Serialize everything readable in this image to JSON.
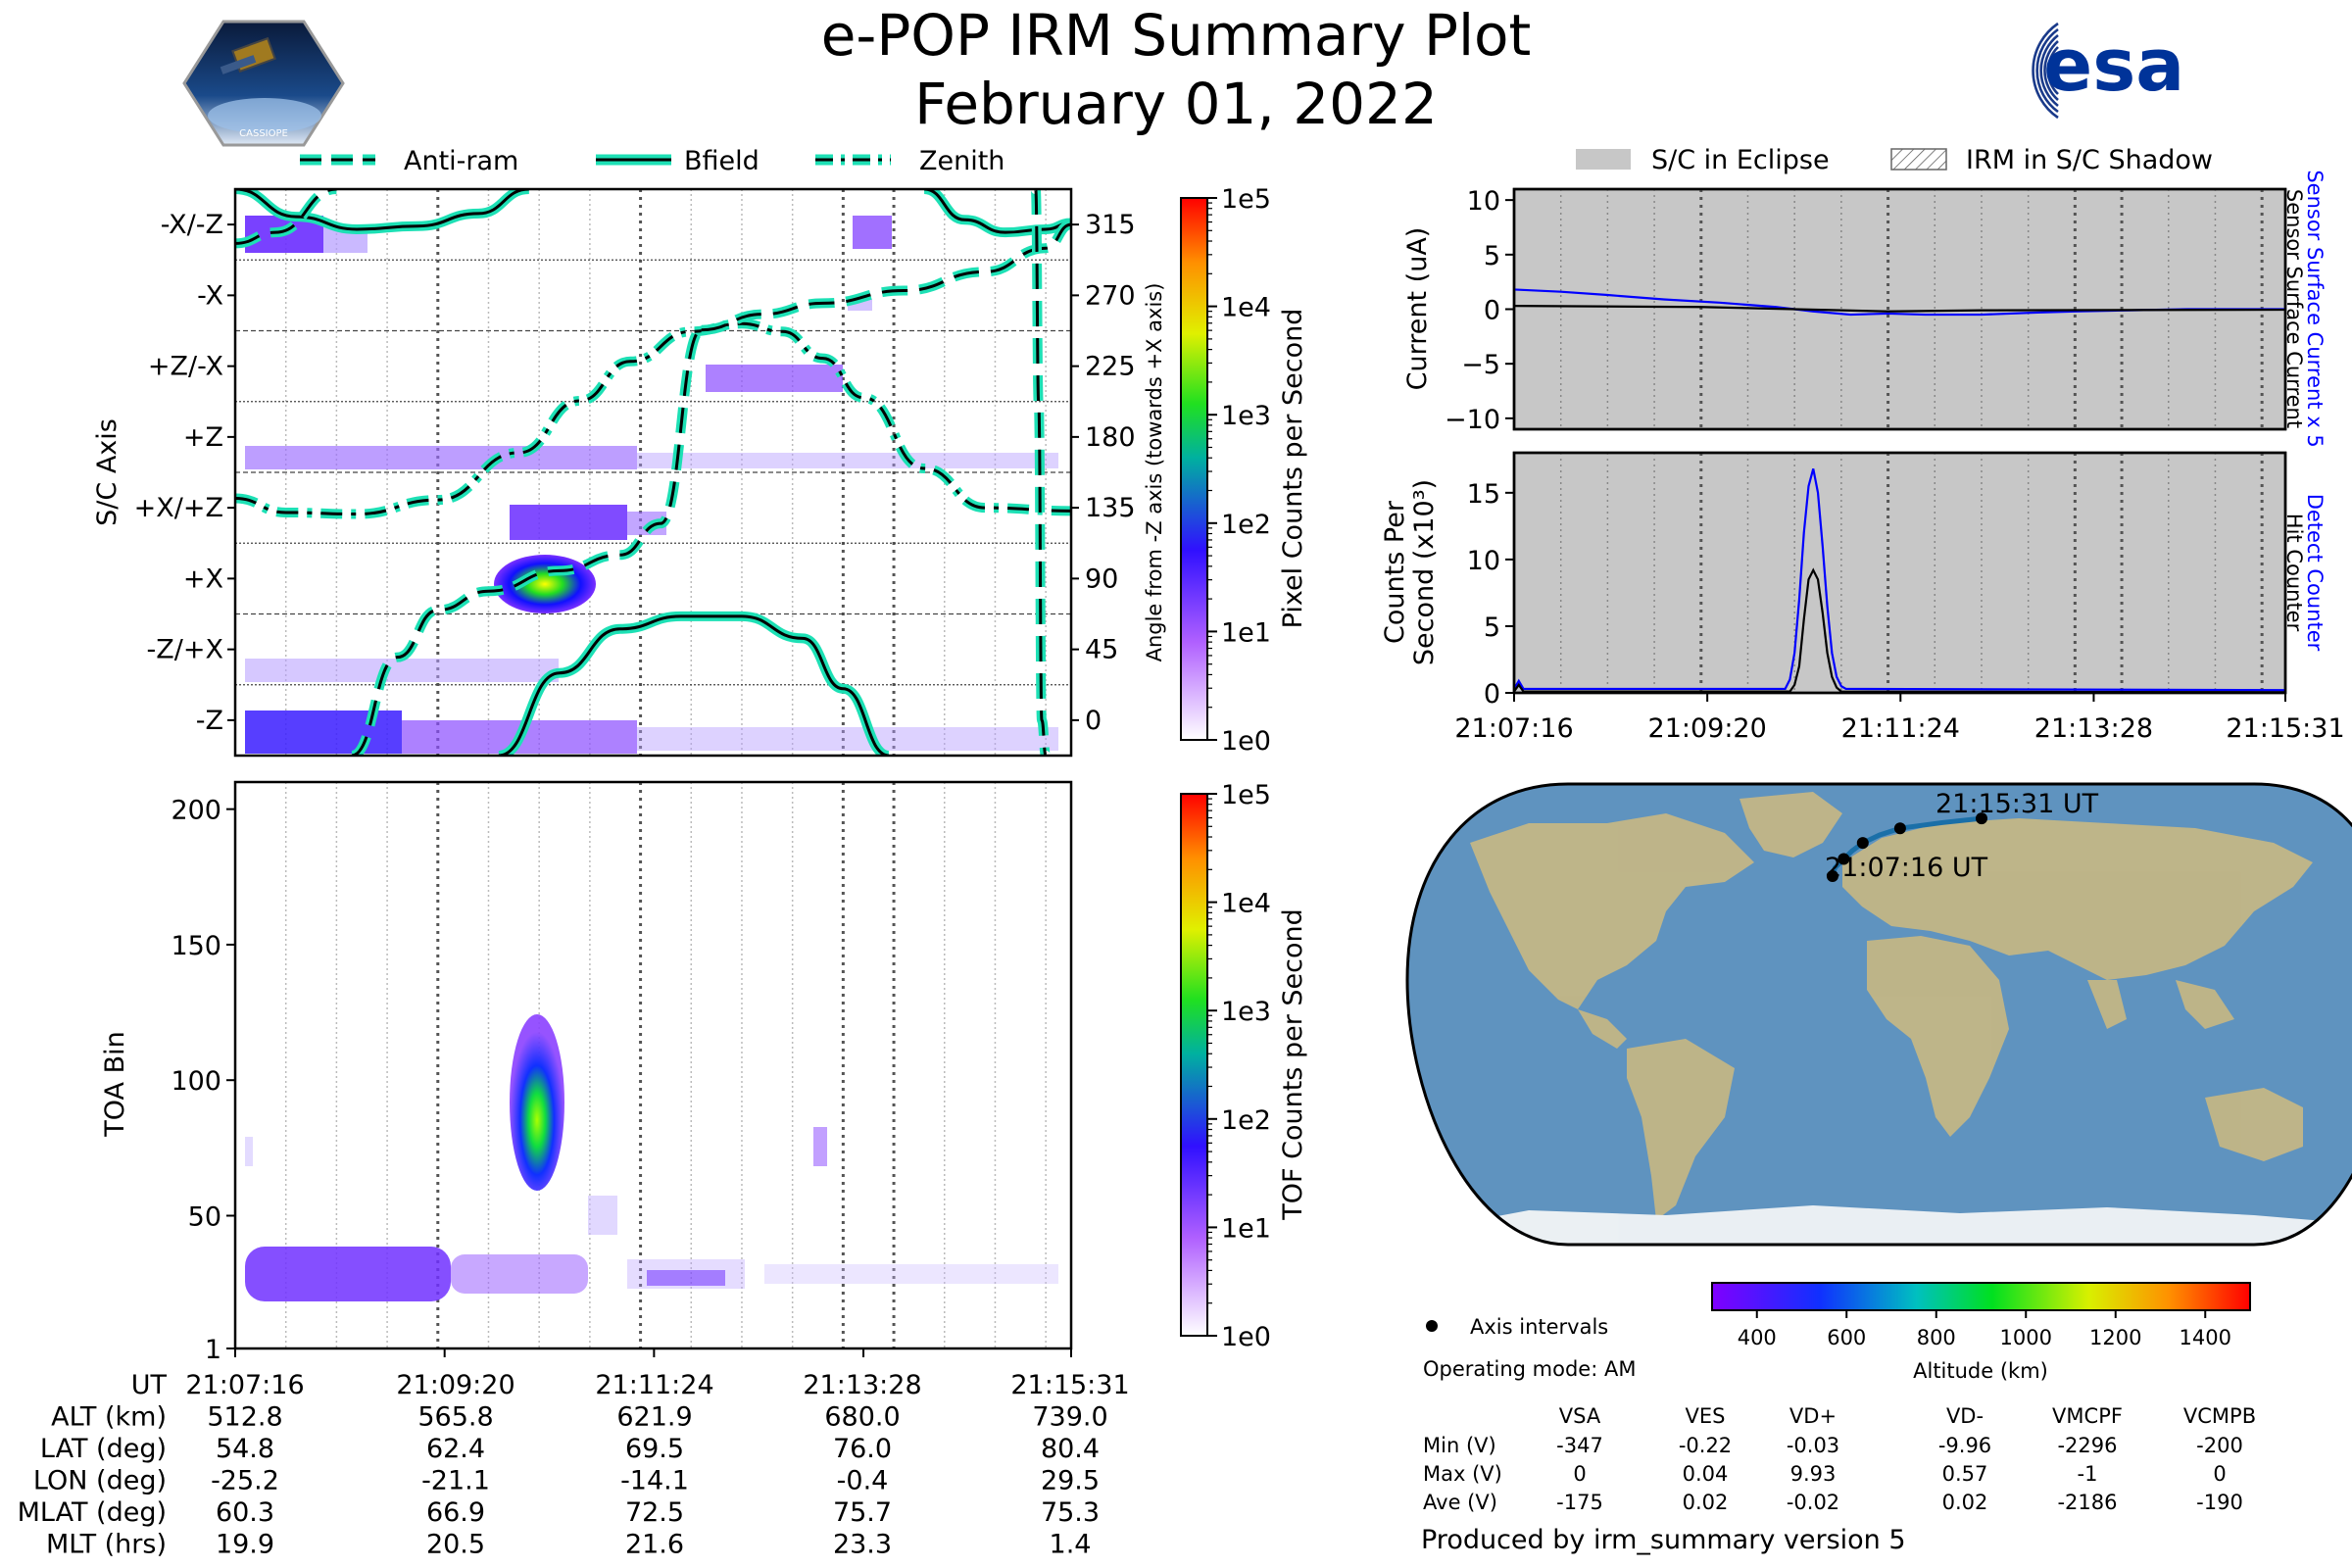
{
  "header": {
    "title": "e-POP IRM Summary Plot",
    "date": "February 01, 2022",
    "left_logo_text": "CASSIOPE",
    "right_logo_text": "esa"
  },
  "colors": {
    "teal": "#1de0b5",
    "blue": "#0000ff",
    "eclipse_gray": "#c7c7c7",
    "map_ocean": "#5f93bf",
    "map_land": "#c3b686",
    "orbit": "#1a6fa8"
  },
  "chart_data": [
    {
      "id": "axis_panel",
      "type": "heatmap",
      "ylabel": "S/C Axis",
      "right_ylabel": "Angle from -Z axis (towards +X axis)",
      "legend": [
        "Anti-ram",
        "Bfield",
        "Zenith"
      ],
      "categories": [
        "-X/-Z",
        "-X",
        "+Z/-X",
        "+Z",
        "+X/+Z",
        "+X",
        "-Z/+X",
        "-Z"
      ],
      "right_ticks": [
        315,
        270,
        225,
        180,
        135,
        90,
        45,
        0
      ],
      "ylim": [
        -22.5,
        337.5
      ],
      "x_minutes": [
        0,
        8.25
      ],
      "curves": [
        {
          "name": "Bfield",
          "style": "solid",
          "x": [
            0,
            0.6,
            1.2,
            1.8,
            2.4,
            2.9
          ],
          "y": [
            337.5,
            320,
            312,
            314,
            322,
            337.5
          ]
        },
        {
          "name": "Bfield",
          "style": "solid",
          "x": [
            6.8,
            7.2,
            7.6,
            8.0,
            8.25
          ],
          "y": [
            337.5,
            318,
            310,
            312,
            316
          ]
        },
        {
          "name": "Bfield",
          "style": "solid",
          "x": [
            2.6,
            3.2,
            3.8,
            4.4,
            5.0,
            5.6,
            6.0,
            6.45
          ],
          "y": [
            -22.5,
            30,
            58,
            66,
            66,
            52,
            20,
            -22.5
          ]
        },
        {
          "name": "Zenith",
          "style": "dashdot",
          "x": [
            0,
            0.5,
            1.2,
            2.0,
            2.8,
            3.4,
            3.9,
            4.5,
            5.0,
            5.4,
            5.8,
            6.2,
            6.8,
            7.4,
            8.25
          ],
          "y": [
            141,
            132,
            131,
            140,
            170,
            203,
            228,
            247,
            252,
            247,
            230,
            205,
            160,
            135,
            133
          ]
        },
        {
          "name": "Anti-ram",
          "style": "dashed",
          "x": [
            0,
            0.4,
            1.0
          ],
          "y": [
            303,
            310,
            337.5
          ]
        },
        {
          "name": "Anti-ram",
          "style": "dashed",
          "x": [
            1.15,
            1.6,
            2.0,
            2.5,
            3.2,
            3.8,
            4.2,
            4.6
          ],
          "y": [
            -22.5,
            40,
            70,
            82,
            95,
            105,
            125,
            248
          ]
        },
        {
          "name": "Anti-ram",
          "style": "dashed",
          "x": [
            4.6,
            5.2,
            5.8,
            6.6,
            7.4,
            8.0,
            8.25
          ],
          "y": [
            248,
            258,
            265,
            273,
            285,
            300,
            315
          ]
        },
        {
          "name": "Anti-ram",
          "style": "dashed",
          "x": [
            7.9,
            7.93,
            7.96,
            8.0
          ],
          "y": [
            337.5,
            200,
            0,
            -22.5
          ]
        }
      ],
      "colorbar": {
        "label": "Pixel Counts per Second",
        "ticks": [
          "1e5",
          "1e4",
          "1e3",
          "1e2",
          "1e1",
          "1e0"
        ]
      }
    },
    {
      "id": "toa_panel",
      "type": "heatmap",
      "ylabel": "TOA Bin",
      "yticks": [
        "200",
        "150",
        "100",
        "50",
        "1"
      ],
      "ylim": [
        1,
        210
      ],
      "x_minutes": [
        0,
        8.25
      ],
      "colorbar": {
        "label": "TOF Counts per Second",
        "ticks": [
          "1e5",
          "1e4",
          "1e3",
          "1e2",
          "1e1",
          "1e0"
        ]
      }
    },
    {
      "id": "current_panel",
      "type": "line",
      "ylabel": "Current (uA)",
      "yticks": [
        "10",
        "5",
        "0",
        "−5",
        "−10"
      ],
      "ylim": [
        -11,
        11
      ],
      "legend": [
        "S/C in Eclipse",
        "IRM in S/C Shadow"
      ],
      "series": [
        {
          "name": "Sensor Surface Current x 5",
          "color": "#0000ff",
          "x": [
            0,
            0.5,
            1.0,
            1.6,
            2.2,
            2.8,
            3.2,
            3.6,
            4.0,
            4.4,
            5.0,
            5.6,
            6.0,
            6.6,
            7.2,
            8.25
          ],
          "y": [
            1.8,
            1.6,
            1.3,
            0.9,
            0.6,
            0.2,
            -0.2,
            -0.5,
            -0.4,
            -0.5,
            -0.5,
            -0.3,
            -0.2,
            -0.1,
            0,
            0
          ]
        },
        {
          "name": "Sensor Surface Current",
          "color": "#000000",
          "x": [
            0,
            2.0,
            3.0,
            4.0,
            5.0,
            8.25
          ],
          "y": [
            0.3,
            0.2,
            0,
            -0.2,
            -0.1,
            -0.05
          ]
        }
      ]
    },
    {
      "id": "counts_panel",
      "type": "line",
      "ylabel_lines": [
        "Counts Per",
        "Second (x10³)"
      ],
      "yticks": [
        "15",
        "10",
        "5",
        "0"
      ],
      "ylim": [
        0,
        18
      ],
      "xticks": [
        "21:07:16",
        "21:09:20",
        "21:11:24",
        "21:13:28",
        "21:15:31"
      ],
      "series": [
        {
          "name": "Detect Counter",
          "color": "#0000ff",
          "x": [
            0,
            0.05,
            0.1,
            2.9,
            2.95,
            3.0,
            3.05,
            3.1,
            3.15,
            3.2,
            3.25,
            3.3,
            3.35,
            3.4,
            3.45,
            3.5,
            3.55,
            3.6,
            8.25
          ],
          "y": [
            0.3,
            0.9,
            0.3,
            0.3,
            1.0,
            3.0,
            7.0,
            12.0,
            15.5,
            16.8,
            15.0,
            11.0,
            6.5,
            3.0,
            1.2,
            0.5,
            0.3,
            0.3,
            0.2
          ]
        },
        {
          "name": "Hit Counter",
          "color": "#000000",
          "x": [
            0,
            0.05,
            0.1,
            2.95,
            3.0,
            3.05,
            3.1,
            3.15,
            3.2,
            3.25,
            3.3,
            3.35,
            3.4,
            3.45,
            3.5,
            8.25
          ],
          "y": [
            0.1,
            0.6,
            0.1,
            0.1,
            0.6,
            2.0,
            5.5,
            8.5,
            9.2,
            8.5,
            6.0,
            3.0,
            1.2,
            0.4,
            0.1,
            0.05
          ]
        }
      ]
    },
    {
      "id": "orbit_map",
      "type": "scatter",
      "start_label": "21:07:16 UT",
      "end_label": "21:15:31 UT",
      "track_lon": [
        -25.2,
        -24.3,
        -21.1,
        -18.0,
        -14.1,
        -8.0,
        -0.4,
        15.0,
        29.5
      ],
      "track_lat": [
        54.8,
        58.5,
        62.4,
        66.0,
        69.5,
        73.0,
        76.0,
        78.5,
        80.4
      ],
      "colorbar": {
        "label": "Altitude (km)",
        "ticks": [
          "400",
          "600",
          "800",
          "1000",
          "1200",
          "1400"
        ],
        "range": [
          300,
          1500
        ]
      }
    }
  ],
  "time_table": {
    "rows": [
      {
        "label": "UT",
        "values": [
          "21:07:16",
          "21:09:20",
          "21:11:24",
          "21:13:28",
          "21:15:31"
        ]
      },
      {
        "label": "ALT (km)",
        "values": [
          "512.8",
          "565.8",
          "621.9",
          "680.0",
          "739.0"
        ]
      },
      {
        "label": "LAT (deg)",
        "values": [
          "54.8",
          "62.4",
          "69.5",
          "76.0",
          "80.4"
        ]
      },
      {
        "label": "LON (deg)",
        "values": [
          "-25.2",
          "-21.1",
          "-14.1",
          "-0.4",
          "29.5"
        ]
      },
      {
        "label": "MLAT (deg)",
        "values": [
          "60.3",
          "66.9",
          "72.5",
          "75.7",
          "75.3"
        ]
      },
      {
        "label": "MLT (hrs)",
        "values": [
          "19.9",
          "20.5",
          "21.6",
          "23.3",
          "1.4"
        ]
      }
    ]
  },
  "map_info": {
    "axis_intervals_label": "Axis intervals",
    "operating_mode": "Operating mode: AM"
  },
  "voltage_table": {
    "columns": [
      "VSA",
      "VES",
      "VD+",
      "VD-",
      "VMCPF",
      "VCMPB"
    ],
    "rows": [
      {
        "label": "Min (V)",
        "values": [
          "-347",
          "-0.22",
          "-0.03",
          "-9.96",
          "-2296",
          "-200"
        ]
      },
      {
        "label": "Max (V)",
        "values": [
          "0",
          "0.04",
          "9.93",
          "0.57",
          "-1",
          "0"
        ]
      },
      {
        "label": "Ave (V)",
        "values": [
          "-175",
          "0.02",
          "-0.02",
          "0.02",
          "-2186",
          "-190"
        ]
      }
    ]
  },
  "footer": "Produced by irm_summary version 5"
}
